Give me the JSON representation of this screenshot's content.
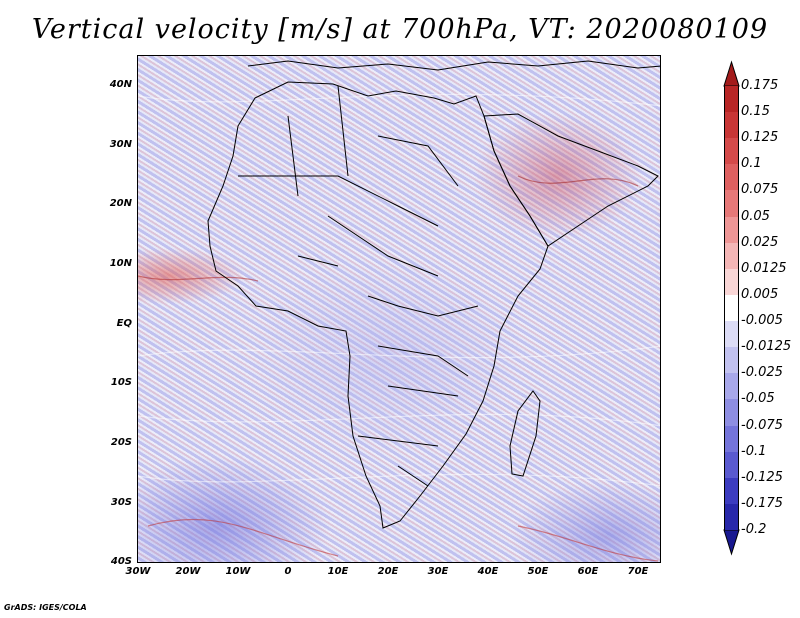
{
  "title": "Vertical velocity [m/s] at 700hPa, VT: 2020080109",
  "footer": "GrADS: IGES/COLA",
  "lat_labels": [
    "40N",
    "30N",
    "20N",
    "10N",
    "EQ",
    "10S",
    "20S",
    "30S",
    "40S"
  ],
  "lon_labels": [
    "30W",
    "20W",
    "10W",
    "0",
    "10E",
    "20E",
    "30E",
    "40E",
    "50E",
    "60E",
    "70E"
  ],
  "colorbar": {
    "labels": [
      "0.175",
      "0.15",
      "0.125",
      "0.1",
      "0.075",
      "0.05",
      "0.025",
      "0.0125",
      "0.005",
      "-0.005",
      "-0.0125",
      "-0.025",
      "-0.05",
      "-0.075",
      "-0.1",
      "-0.125",
      "-0.175",
      "-0.2"
    ],
    "colors": [
      "#a31b1b",
      "#b82626",
      "#c83636",
      "#d44a4a",
      "#de6060",
      "#e67878",
      "#ee9696",
      "#f4b6b6",
      "#f9d6d6",
      "#ffffff",
      "#dcdcf6",
      "#c2c2f0",
      "#a8a8ea",
      "#8e8ee2",
      "#7474da",
      "#5a5ad0",
      "#3c3cc0",
      "#2828aa",
      "#181890"
    ]
  }
}
